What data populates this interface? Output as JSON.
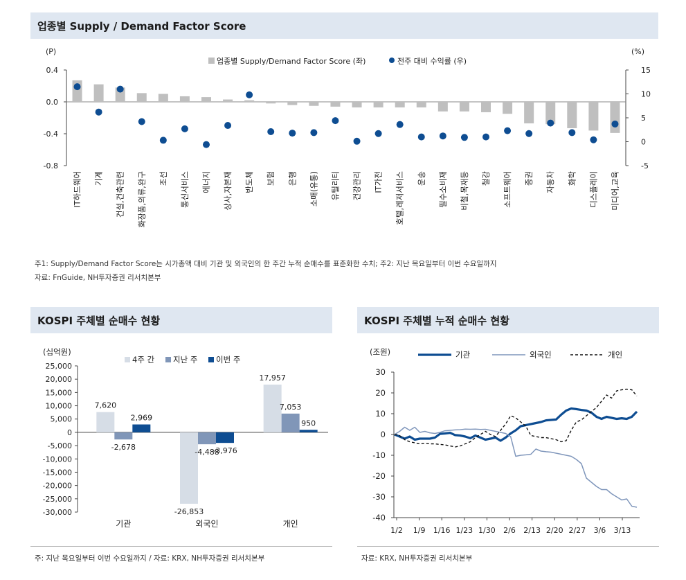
{
  "top": {
    "title": "업종별 Supply / Demand Factor Score",
    "note1": "주1: Supply/Demand Factor Score는 시가총액 대비 기관 및 외국인의 한 주간 누적 순매수를 표준화한 수치; 주2: 지난 목요일부터 이번 수요일까지",
    "note2": "자료: FnGuide, NH투자증권 리서치본부"
  },
  "bottom_left": {
    "title": "KOSPI 주체별 순매수 현황",
    "note": "주: 지난 목요일부터 이번 수요일까지 / 자료: KRX, NH투자증권 리서치본부"
  },
  "bottom_right": {
    "title": "KOSPI 주체별 누적 순매수 현황",
    "note": "자료: KRX, NH투자증권 리서치본부"
  },
  "colors": {
    "bar_gray": "#bfbfbf",
    "dot_blue": "#0e4d92",
    "light": "#d6dde6",
    "mid": "#8096b8",
    "dark": "#0e4d92",
    "foreign_line": "#7f96bb",
    "individual_line": "#111111"
  },
  "chart_data": [
    {
      "type": "bar",
      "id": "sector_score",
      "ylabel_left": "(P)",
      "ylabel_right": "(%)",
      "ylim_left": [
        -0.8,
        0.4
      ],
      "yticks_left": [
        "0.4",
        "0.0",
        "-0.4",
        "-0.8"
      ],
      "ylim_right": [
        -5,
        15
      ],
      "yticks_right": [
        "15",
        "10",
        "5",
        "0",
        "-5"
      ],
      "legend": [
        "업종별 Supply/Demand Factor Score (좌)",
        "전주 대비 수익률 (우)"
      ],
      "categories": [
        "IT하드웨어",
        "기계",
        "건설,건축관련",
        "화장품,의류,완구",
        "조선",
        "통신서비스",
        "에너지",
        "상사,자본재",
        "반도체",
        "보험",
        "은행",
        "소매(유통)",
        "유틸리티",
        "건강관리",
        "IT가전",
        "호텔,레저서비스",
        "운송",
        "필수소비재",
        "비철,목재등",
        "철강",
        "소프트웨어",
        "증권",
        "자동차",
        "화학",
        "디스플레이",
        "미디어,교육"
      ],
      "series": [
        {
          "name": "업종별 Supply/Demand Factor Score (좌)",
          "kind": "bar",
          "axis": "left",
          "values": [
            0.27,
            0.22,
            0.18,
            0.11,
            0.1,
            0.07,
            0.06,
            0.03,
            0.02,
            -0.02,
            -0.04,
            -0.05,
            -0.06,
            -0.07,
            -0.07,
            -0.07,
            -0.07,
            -0.12,
            -0.12,
            -0.13,
            -0.15,
            -0.27,
            -0.28,
            -0.33,
            -0.36,
            -0.39
          ]
        },
        {
          "name": "전주 대비 수익률 (우)",
          "kind": "scatter",
          "axis": "right",
          "values": [
            11.5,
            6.2,
            11.0,
            4.2,
            0.3,
            2.7,
            -0.6,
            3.4,
            9.8,
            2.1,
            1.8,
            1.9,
            4.4,
            0.1,
            1.7,
            3.6,
            1.0,
            1.2,
            0.9,
            1.0,
            2.3,
            1.7,
            3.9,
            1.9,
            0.4,
            3.7
          ]
        }
      ]
    },
    {
      "type": "bar",
      "id": "kospi_net_buy",
      "ylabel": "(십억원)",
      "ylim": [
        -30000,
        25000
      ],
      "yticks": [
        "25,000",
        "20,000",
        "15,000",
        "10,000",
        "5,000",
        "0",
        "-5,000",
        "-10,000",
        "-15,000",
        "-20,000",
        "-25,000",
        "-30,000"
      ],
      "categories": [
        "기관",
        "외국인",
        "개인"
      ],
      "series": [
        {
          "name": "4주 간",
          "values": [
            7620,
            -26853,
            17957
          ],
          "labels": [
            "7,620",
            "-26,853",
            "17,957"
          ]
        },
        {
          "name": "지난 주",
          "values": [
            -2678,
            -4488,
            7053
          ],
          "labels": [
            "-2,678",
            "-4,488",
            "7,053"
          ]
        },
        {
          "name": "이번 주",
          "values": [
            2969,
            -3976,
            950
          ],
          "labels": [
            "2,969",
            "-3,976",
            "950"
          ]
        }
      ]
    },
    {
      "type": "line",
      "id": "kospi_cum_net_buy",
      "ylabel": "(조원)",
      "ylim": [
        -40,
        30
      ],
      "yticks": [
        "30",
        "20",
        "10",
        "0",
        "-10",
        "-20",
        "-30",
        "-40"
      ],
      "xlabels": [
        "1/2",
        "1/9",
        "1/16",
        "1/23",
        "1/30",
        "2/6",
        "2/13",
        "2/20",
        "2/27",
        "3/6",
        "3/13"
      ],
      "series": [
        {
          "name": "기관",
          "values": [
            0,
            -1,
            -2,
            -1,
            -2.5,
            -2,
            -2,
            -2,
            -1.5,
            0.3,
            0.5,
            0.8,
            -0.3,
            -0.5,
            -1,
            -1.8,
            -0.5,
            -1.5,
            -2.5,
            -2,
            -1.5,
            -3,
            -1.5,
            0.5,
            2,
            4,
            4.5,
            5,
            5.5,
            6,
            6.8,
            7,
            7.2,
            9.5,
            11.5,
            12.5,
            12.2,
            11.8,
            11.5,
            10.5,
            8.5,
            7.5,
            8.5,
            8,
            7.5,
            7.8,
            7.5,
            8.5,
            11
          ]
        },
        {
          "name": "외국인",
          "values": [
            0,
            1.5,
            3.5,
            2,
            3.5,
            1,
            1.5,
            0.8,
            0.5,
            1,
            1.8,
            2,
            2.2,
            2.3,
            2.6,
            2.5,
            2.6,
            2.4,
            2.5,
            2,
            1.5,
            1,
            0.5,
            -1,
            -10.5,
            -10,
            -9.8,
            -9.5,
            -7,
            -8,
            -8.3,
            -8.5,
            -9,
            -9.5,
            -10,
            -10.5,
            -12,
            -14,
            -21,
            -23,
            -25,
            -26.5,
            -26.5,
            -28.5,
            -30,
            -31.5,
            -31,
            -34.5,
            -35
          ]
        },
        {
          "name": "개인",
          "values": [
            0,
            -0.5,
            -2.5,
            -3.5,
            -4,
            -4.5,
            -4.2,
            -4.5,
            -4.5,
            -4.8,
            -5,
            -5.5,
            -6,
            -5.5,
            -4.5,
            -3.5,
            -1.5,
            0,
            1.5,
            0,
            -1,
            2,
            5,
            9,
            8,
            6,
            4,
            -0.5,
            -1,
            -1.5,
            -1.5,
            -2,
            -2.5,
            -3.5,
            -3,
            2,
            6,
            7,
            9,
            11,
            13,
            16,
            19,
            17.5,
            21,
            21.5,
            21.8,
            21.5,
            18.5
          ]
        }
      ]
    }
  ]
}
